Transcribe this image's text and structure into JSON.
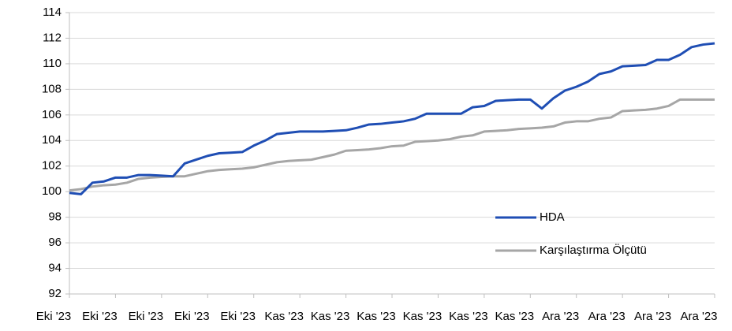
{
  "chart_data": {
    "type": "line",
    "categories": [
      "Eki '23",
      null,
      null,
      null,
      "Eki '23",
      null,
      null,
      null,
      "Eki '23",
      null,
      null,
      null,
      "Eki '23",
      null,
      null,
      null,
      "Eki '23",
      null,
      null,
      null,
      "Kas '23",
      null,
      null,
      null,
      "Kas '23",
      null,
      null,
      null,
      "Kas '23",
      null,
      null,
      null,
      "Kas '23",
      null,
      null,
      null,
      "Kas '23",
      null,
      null,
      null,
      "Kas '23",
      null,
      null,
      null,
      "Ara '23",
      null,
      null,
      null,
      "Ara '23",
      null,
      null,
      null,
      "Ara '23",
      null,
      null,
      null,
      "Ara '23"
    ],
    "series": [
      {
        "name": "HDA",
        "color": "#1f4eb4",
        "values": [
          99.9,
          99.8,
          100.7,
          100.8,
          101.1,
          101.1,
          101.3,
          101.3,
          101.25,
          101.2,
          102.2,
          102.5,
          102.8,
          103.0,
          103.05,
          103.1,
          103.6,
          104.0,
          104.5,
          104.6,
          104.7,
          104.7,
          104.7,
          104.75,
          104.8,
          105.0,
          105.25,
          105.3,
          105.4,
          105.5,
          105.7,
          106.1,
          106.1,
          106.1,
          106.1,
          106.6,
          106.7,
          107.1,
          107.15,
          107.2,
          107.2,
          106.5,
          107.3,
          107.9,
          108.2,
          108.6,
          109.2,
          109.4,
          109.8,
          109.85,
          109.9,
          110.3,
          110.3,
          110.7,
          111.3,
          111.5,
          111.6
        ]
      },
      {
        "name": "Karşılaştırma Ölçütü",
        "color": "#a6a6a6",
        "values": [
          100.1,
          100.2,
          100.4,
          100.5,
          100.55,
          100.7,
          101.0,
          101.1,
          101.15,
          101.2,
          101.2,
          101.4,
          101.6,
          101.7,
          101.75,
          101.8,
          101.9,
          102.1,
          102.3,
          102.4,
          102.45,
          102.5,
          102.7,
          102.9,
          103.2,
          103.25,
          103.3,
          103.4,
          103.55,
          103.6,
          103.9,
          103.95,
          104.0,
          104.1,
          104.3,
          104.4,
          104.7,
          104.75,
          104.8,
          104.9,
          104.95,
          105.0,
          105.1,
          105.4,
          105.5,
          105.5,
          105.7,
          105.8,
          106.3,
          106.35,
          106.4,
          106.5,
          106.7,
          107.2,
          107.2,
          107.2,
          107.2
        ]
      }
    ],
    "ylim": [
      92,
      114
    ],
    "yticks": [
      92,
      94,
      96,
      98,
      100,
      102,
      104,
      106,
      108,
      110,
      112,
      114
    ],
    "grid": true,
    "legend": "right"
  }
}
